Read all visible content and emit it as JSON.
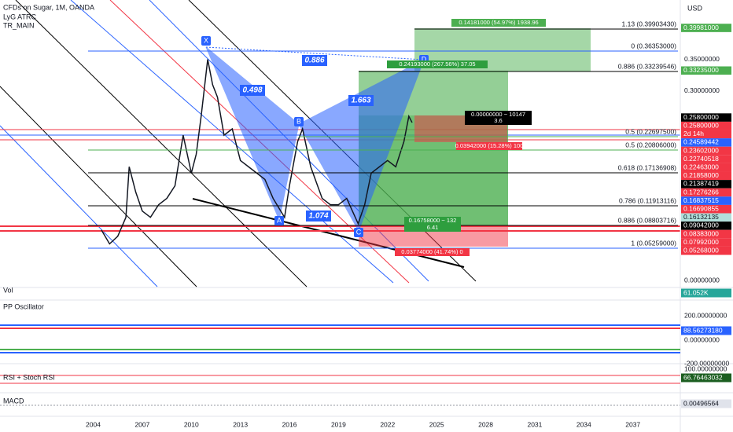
{
  "header": {
    "title": "CFDs on Sugar, 1M, OANDA",
    "indicators": [
      "LyG ATRC",
      "TR_MAIN"
    ],
    "currency": "USD"
  },
  "chart_data": {
    "type": "line",
    "color": "#131722",
    "x": [
      2004.5,
      2005,
      2005.5,
      2006,
      2006.2,
      2006.6,
      2007,
      2007.5,
      2008,
      2008.5,
      2009,
      2009.5,
      2010,
      2010.3,
      2010.6,
      2011,
      2011.3,
      2011.6,
      2012,
      2012.5,
      2013,
      2013.5,
      2014,
      2014.5,
      2015,
      2015.7,
      2016,
      2016.5,
      2016.8,
      2017.3,
      2018,
      2018.5,
      2019,
      2019.5,
      2020.2,
      2020.6,
      2021,
      2021.5,
      2022,
      2022.5,
      2023,
      2023.3,
      2023.5
    ],
    "values": [
      0.08,
      0.058,
      0.07,
      0.1,
      0.18,
      0.14,
      0.11,
      0.1,
      0.12,
      0.13,
      0.15,
      0.23,
      0.17,
      0.2,
      0.26,
      0.35,
      0.31,
      0.29,
      0.23,
      0.24,
      0.19,
      0.18,
      0.17,
      0.16,
      0.13,
      0.1,
      0.15,
      0.22,
      0.24,
      0.18,
      0.13,
      0.12,
      0.12,
      0.13,
      0.09,
      0.12,
      0.17,
      0.18,
      0.19,
      0.18,
      0.22,
      0.26,
      0.25
    ],
    "xlim": [
      1998.3,
      2039.9
    ],
    "xticks": [
      2004,
      2007,
      2010,
      2013,
      2016,
      2019,
      2022,
      2025,
      2028,
      2031,
      2034,
      2037
    ],
    "ylim": [
      -0.011,
      0.444
    ],
    "yticks": [
      {
        "value": 0.35,
        "label": "0.35000000"
      },
      {
        "value": 0.3,
        "label": "0.30000000"
      },
      {
        "value": 0,
        "label": "0.00000000"
      }
    ],
    "price_labels": [
      {
        "value": 0.39981,
        "label": "0.39981000",
        "color": "#4caf50"
      },
      {
        "value": 0.33235,
        "label": "0.33235000",
        "color": "#4caf50"
      },
      {
        "value": 0.258,
        "label": "0.25800000",
        "color": "#000000"
      },
      {
        "value": 0.258,
        "label": "0.25800000",
        "color": "#f23645"
      },
      {
        "value": 0.24589442,
        "label": "0.24589442",
        "color": "#2962ff"
      },
      {
        "value": 0.23602,
        "label": "0.23602000",
        "color": "#f23645"
      },
      {
        "value": 0.22740518,
        "label": "0.22740518",
        "color": "#f23645"
      },
      {
        "value": 0.22463,
        "label": "0.22463000",
        "color": "#f23645"
      },
      {
        "value": 0.21858,
        "label": "0.21858000",
        "color": "#f23645"
      },
      {
        "value": 0.21387419,
        "label": "0.21387419",
        "color": "#000000"
      },
      {
        "value": 0.17276266,
        "label": "0.17276266",
        "color": "#f23645"
      },
      {
        "value": 0.16837515,
        "label": "0.16837515",
        "color": "#2962ff"
      },
      {
        "value": 0.16690855,
        "label": "0.16690855",
        "color": "#f23645"
      },
      {
        "value": 0.16132135,
        "label": "0.16132135",
        "color": "#b2dfdb"
      },
      {
        "value": 0.09042,
        "label": "0.09042000",
        "color": "#000000"
      },
      {
        "value": 0.08383,
        "label": "0.08383000",
        "color": "#f23645"
      },
      {
        "value": 0.07992,
        "label": "0.07992000",
        "color": "#f23645"
      },
      {
        "value": 0.05268,
        "label": "0.05268000",
        "color": "#f23645"
      }
    ],
    "countdown": "2d 14h",
    "fib_levels": [
      "1.13 (0.39903430)",
      "0 (0.36353000)",
      "0.886 (0.33239546)",
      "0.5 (0.22697500)",
      "0.5 (0.20806000)",
      "0.618 (0.17136908)",
      "0.786 (0.11913116)",
      "0.886 (0.08803716)",
      "1 (0.05259000)"
    ],
    "pattern": {
      "points": [
        "X",
        "A",
        "B",
        "C",
        "D"
      ],
      "ratios": [
        "0.886",
        "0.498",
        "1.663",
        "1.074"
      ]
    },
    "positions": [
      "0.14181000 (54.97%) 1938.96",
      "0.24193000 (267.56%) 37.05",
      "0.00000000 ~ 10147",
      "3.6",
      "0.03942000 (15.28%) 100",
      "0.16758000 ~ 132",
      "6.41",
      "0.03774000 (41.74%) 0"
    ]
  },
  "panes": [
    {
      "title": "Vol",
      "value_label": "61.052K"
    },
    {
      "title": "PP Oscillator",
      "value_label": "88.56273180",
      "ticks": [
        "200.00000000",
        "0.00000000",
        "-200.00000000"
      ]
    },
    {
      "title": "RSI + Stoch RSI",
      "value_label": "66.76463032",
      "ticks": [
        "100.00000000"
      ]
    },
    {
      "title": "MACD",
      "value_label": "0.00496564"
    }
  ]
}
